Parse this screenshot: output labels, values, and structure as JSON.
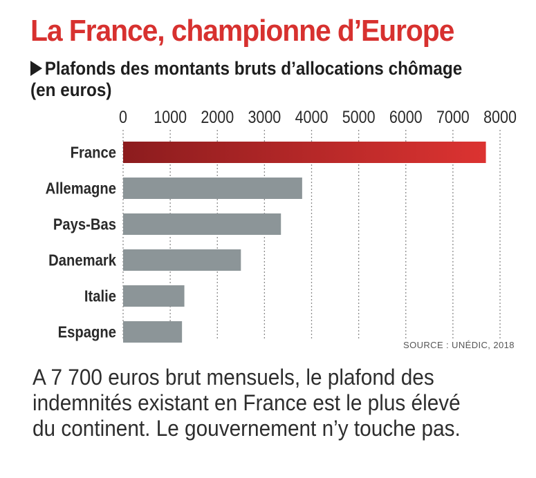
{
  "colors": {
    "title": "#d7312f",
    "highlight_start": "#8c1c1e",
    "highlight_end": "#dc3331",
    "bar": "#8c9598",
    "grid": "#8a8a8a",
    "text": "#2a2a2a"
  },
  "header": {
    "title": "La France, championne d’Europe",
    "subtitle": "Plafonds des montants bruts d’allocations chômage (en euros)"
  },
  "chart_data": {
    "type": "bar",
    "orientation": "horizontal",
    "title": "Plafonds des montants bruts d’allocations chômage (en euros)",
    "categories": [
      "France",
      "Allemagne",
      "Pays-Bas",
      "Danemark",
      "Italie",
      "Espagne"
    ],
    "values": [
      7700,
      3800,
      3350,
      2500,
      1300,
      1250
    ],
    "highlight": "France",
    "xlim": [
      0,
      8000
    ],
    "xticks": [
      0,
      1000,
      2000,
      3000,
      4000,
      5000,
      6000,
      7000,
      8000
    ],
    "tick_labels": [
      "0",
      "1000",
      "2000",
      "3000",
      "4000",
      "5000",
      "6000",
      "7000",
      "8000"
    ],
    "axis_position": "top",
    "grid": true,
    "grid_style": "dotted"
  },
  "footer": {
    "source": "SOURCE : UNÉDIC, 2018",
    "caption": "A 7 700 euros brut mensuels, le plafond des indemnités existant en France est le plus élevé du continent. Le gouvernement n’y touche pas."
  }
}
